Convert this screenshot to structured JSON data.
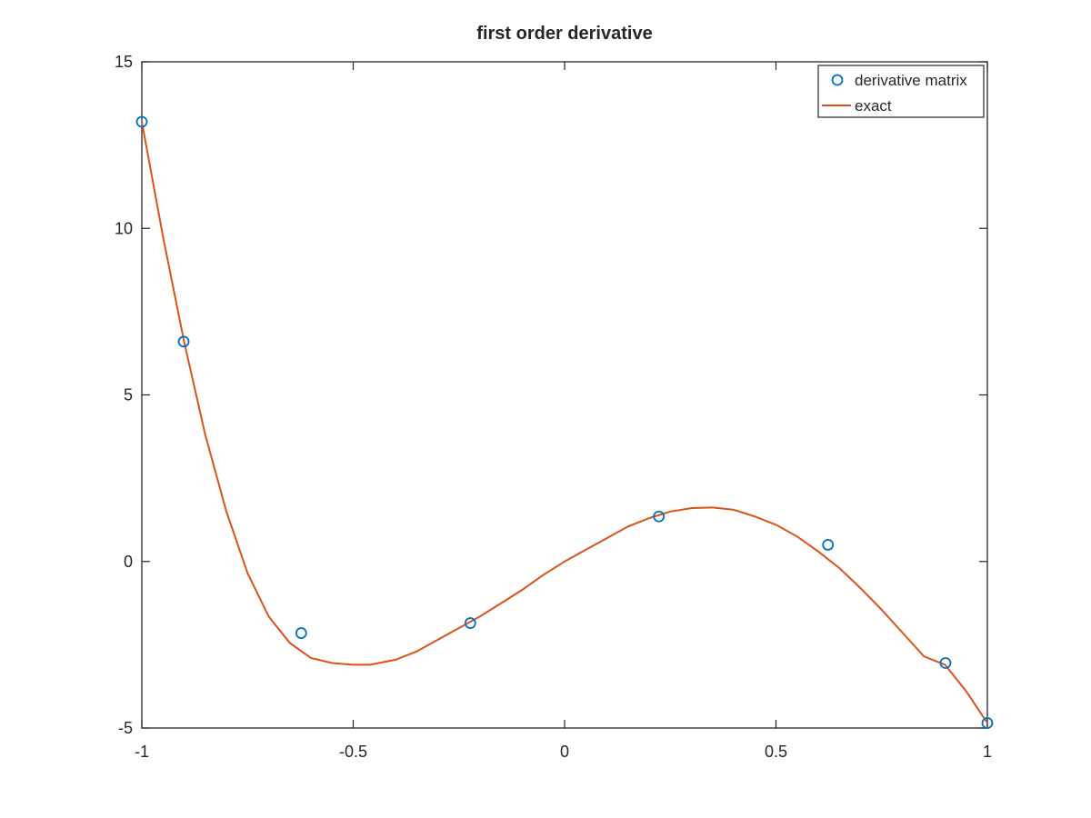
{
  "chart_data": {
    "type": "line",
    "title": "first order derivative",
    "xlabel": "",
    "ylabel": "",
    "xlim": [
      -1,
      1
    ],
    "ylim": [
      -5,
      15
    ],
    "xticks": [
      -1,
      -0.5,
      0,
      0.5,
      1
    ],
    "xtick_labels": [
      "-1",
      "-0.5",
      "0",
      "0.5",
      "1"
    ],
    "yticks": [
      -5,
      0,
      5,
      10,
      15
    ],
    "ytick_labels": [
      "-5",
      "0",
      "5",
      "10",
      "15"
    ],
    "grid": false,
    "legend_position": "top-right",
    "series": [
      {
        "name": "derivative matrix",
        "style": "markers",
        "marker": "circle",
        "color": "#0072bd",
        "x": [
          -1.0,
          -0.901,
          -0.623,
          -0.223,
          0.223,
          0.623,
          0.901,
          1.0
        ],
        "y": [
          13.2,
          6.6,
          -2.15,
          -1.85,
          1.35,
          0.5,
          -3.05,
          -4.85
        ]
      },
      {
        "name": "exact",
        "style": "line",
        "color": "#d95319",
        "x": [
          -1.0,
          -0.95,
          -0.9,
          -0.85,
          -0.8,
          -0.75,
          -0.7,
          -0.65,
          -0.6,
          -0.55,
          -0.5,
          -0.46,
          -0.4,
          -0.35,
          -0.3,
          -0.25,
          -0.2,
          -0.15,
          -0.1,
          -0.05,
          0.0,
          0.05,
          0.1,
          0.15,
          0.2,
          0.25,
          0.3,
          0.35,
          0.4,
          0.45,
          0.5,
          0.55,
          0.6,
          0.65,
          0.7,
          0.75,
          0.8,
          0.85,
          0.9,
          0.95,
          1.0
        ],
        "y": [
          13.2,
          9.75,
          6.6,
          3.8,
          1.5,
          -0.35,
          -1.65,
          -2.45,
          -2.9,
          -3.05,
          -3.1,
          -3.1,
          -2.95,
          -2.7,
          -2.35,
          -2.0,
          -1.65,
          -1.25,
          -0.85,
          -0.4,
          0.0,
          0.35,
          0.7,
          1.05,
          1.3,
          1.5,
          1.6,
          1.62,
          1.55,
          1.35,
          1.1,
          0.75,
          0.3,
          -0.2,
          -0.8,
          -1.45,
          -2.15,
          -2.85,
          -3.1,
          -3.9,
          -4.85
        ]
      }
    ]
  }
}
